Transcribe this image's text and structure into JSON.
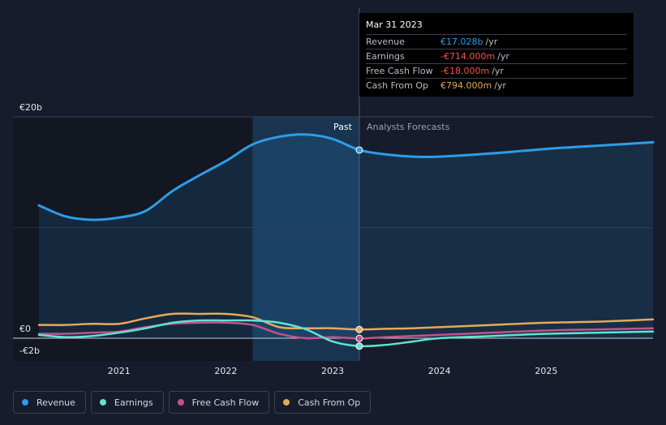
{
  "colors": {
    "background": "#161c2b",
    "revenue": "#2e9de8",
    "earnings": "#5fe3d0",
    "free_cash_flow": "#c4518d",
    "cash_from_op": "#e6a95a",
    "past_highlight": "#1b3c5e"
  },
  "tooltip": {
    "date": "Mar 31 2023",
    "rows": [
      {
        "label": "Revenue",
        "value": "€17.028b",
        "unit": "/yr",
        "color": "#2e9de8"
      },
      {
        "label": "Earnings",
        "value": "-€714.000m",
        "unit": "/yr",
        "color": "#ff4d4d"
      },
      {
        "label": "Free Cash Flow",
        "value": "-€18.000m",
        "unit": "/yr",
        "color": "#ff4d4d"
      },
      {
        "label": "Cash From Op",
        "value": "€794.000m",
        "unit": "/yr",
        "color": "#e6a95a"
      }
    ]
  },
  "legend": [
    {
      "label": "Revenue",
      "color": "#2e9de8"
    },
    {
      "label": "Earnings",
      "color": "#5fe3d0"
    },
    {
      "label": "Free Cash Flow",
      "color": "#c4518d"
    },
    {
      "label": "Cash From Op",
      "color": "#e6a95a"
    }
  ],
  "chart_data": {
    "type": "line",
    "y_tick_labels": [
      "€20b",
      "€0",
      "-€2b"
    ],
    "y_tick_values": [
      20,
      0,
      -2
    ],
    "ylim": [
      -2,
      20
    ],
    "xlim": [
      2020.25,
      2026.0
    ],
    "x_ticks": [
      2021,
      2022,
      2023,
      2024,
      2025
    ],
    "x_tick_labels": [
      "2021",
      "2022",
      "2023",
      "2024",
      "2025"
    ],
    "past_label": "Past",
    "forecast_label": "Analysts Forecasts",
    "past_highlight_range": [
      2022.25,
      2023.25
    ],
    "divider_x": 2023.25,
    "grid": true,
    "series": [
      {
        "name": "Revenue",
        "x": [
          2020.25,
          2020.5,
          2020.75,
          2021.0,
          2021.25,
          2021.5,
          2021.75,
          2022.0,
          2022.25,
          2022.5,
          2022.75,
          2023.0,
          2023.25,
          2023.5,
          2023.75,
          2024.0,
          2024.5,
          2025.0,
          2025.5,
          2026.0
        ],
        "values": [
          12.0,
          11.0,
          10.7,
          10.9,
          11.5,
          13.3,
          14.7,
          16.0,
          17.5,
          18.2,
          18.4,
          18.0,
          17.0,
          16.6,
          16.4,
          16.4,
          16.7,
          17.1,
          17.4,
          17.7
        ]
      },
      {
        "name": "Earnings",
        "x": [
          2020.25,
          2020.5,
          2020.75,
          2021.0,
          2021.25,
          2021.5,
          2021.75,
          2022.0,
          2022.25,
          2022.5,
          2022.75,
          2023.0,
          2023.25,
          2023.5,
          2023.75,
          2024.0,
          2024.5,
          2025.0,
          2025.5,
          2026.0
        ],
        "values": [
          0.3,
          0.1,
          0.2,
          0.5,
          0.9,
          1.4,
          1.6,
          1.6,
          1.6,
          1.4,
          0.8,
          -0.3,
          -0.71,
          -0.6,
          -0.3,
          0.0,
          0.2,
          0.4,
          0.5,
          0.6
        ]
      },
      {
        "name": "Free Cash Flow",
        "x": [
          2020.25,
          2020.5,
          2020.75,
          2021.0,
          2021.25,
          2021.5,
          2021.75,
          2022.0,
          2022.25,
          2022.5,
          2022.75,
          2023.0,
          2023.25,
          2023.5,
          2023.75,
          2024.0,
          2024.5,
          2025.0,
          2025.5,
          2026.0
        ],
        "values": [
          0.4,
          0.4,
          0.5,
          0.6,
          1.0,
          1.3,
          1.4,
          1.4,
          1.2,
          0.4,
          0.0,
          0.1,
          -0.02,
          0.1,
          0.2,
          0.3,
          0.5,
          0.7,
          0.8,
          0.9
        ]
      },
      {
        "name": "Cash From Op",
        "x": [
          2020.25,
          2020.5,
          2020.75,
          2021.0,
          2021.25,
          2021.5,
          2021.75,
          2022.0,
          2022.25,
          2022.5,
          2022.75,
          2023.0,
          2023.25,
          2023.5,
          2023.75,
          2024.0,
          2024.5,
          2025.0,
          2025.5,
          2026.0
        ],
        "values": [
          1.2,
          1.2,
          1.3,
          1.3,
          1.8,
          2.2,
          2.2,
          2.2,
          1.9,
          1.0,
          0.9,
          0.9,
          0.79,
          0.85,
          0.9,
          1.0,
          1.2,
          1.4,
          1.5,
          1.7
        ]
      }
    ]
  }
}
